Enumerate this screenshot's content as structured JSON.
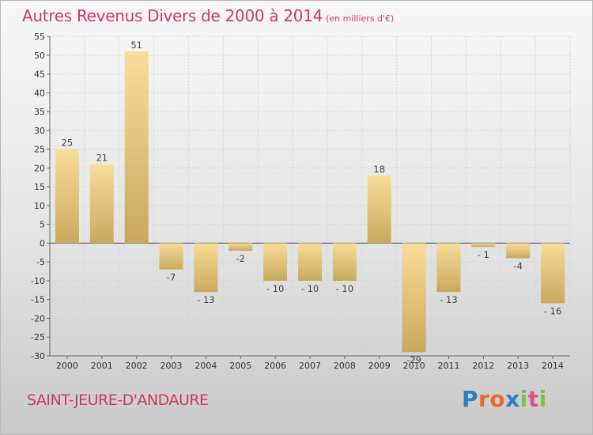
{
  "header": {
    "title": "Autres Revenus Divers de 2000 à 2014",
    "subtitle": "(en milliers d'€)"
  },
  "footer": {
    "commune": "SAINT-JEURE-D'ANDAURE",
    "logo": [
      "P",
      "r",
      "o",
      "x",
      "i",
      "t",
      "i"
    ]
  },
  "colors": {
    "title": "#d0375c",
    "bar_light": "#f8de9a",
    "bar_dark": "#c8a95c",
    "logo": [
      "#2a7ec2",
      "#e8682d",
      "#e8682d",
      "#2a7ec2",
      "#7cc243",
      "#e34e86",
      "#7cc243"
    ]
  },
  "chart_data": {
    "type": "bar",
    "categories": [
      "2000",
      "2001",
      "2002",
      "2003",
      "2004",
      "2005",
      "2006",
      "2007",
      "2008",
      "2009",
      "2010",
      "2011",
      "2012",
      "2013",
      "2014"
    ],
    "values": [
      25,
      21,
      51,
      -7,
      -13,
      -2,
      -10,
      -10,
      -10,
      18,
      -29,
      -13,
      -1,
      -4,
      -16
    ],
    "data_labels": [
      "25",
      "21",
      "51",
      "-7",
      "- 13",
      "-2",
      "- 10",
      "- 10",
      "- 10",
      "18",
      "-29",
      "- 13",
      "- 1",
      "-4",
      "- 16"
    ],
    "ylim": [
      -30,
      55
    ],
    "yticks": [
      -30,
      -25,
      -20,
      -15,
      -10,
      -5,
      0,
      5,
      10,
      15,
      20,
      25,
      30,
      35,
      40,
      45,
      50,
      55
    ],
    "grid": true
  }
}
